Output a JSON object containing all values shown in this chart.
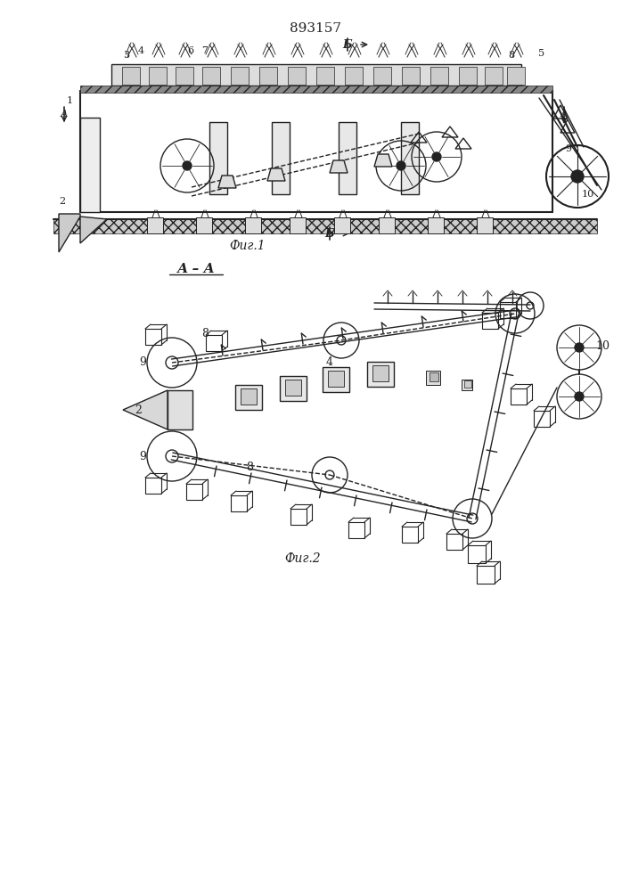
{
  "patent_number": "893157",
  "fig1_label": "Фиг.1",
  "fig2_label": "Фиг.2",
  "section_b_label": "Б",
  "section_aa_label": "А – А",
  "bg_color": "#ffffff",
  "line_color": "#222222"
}
